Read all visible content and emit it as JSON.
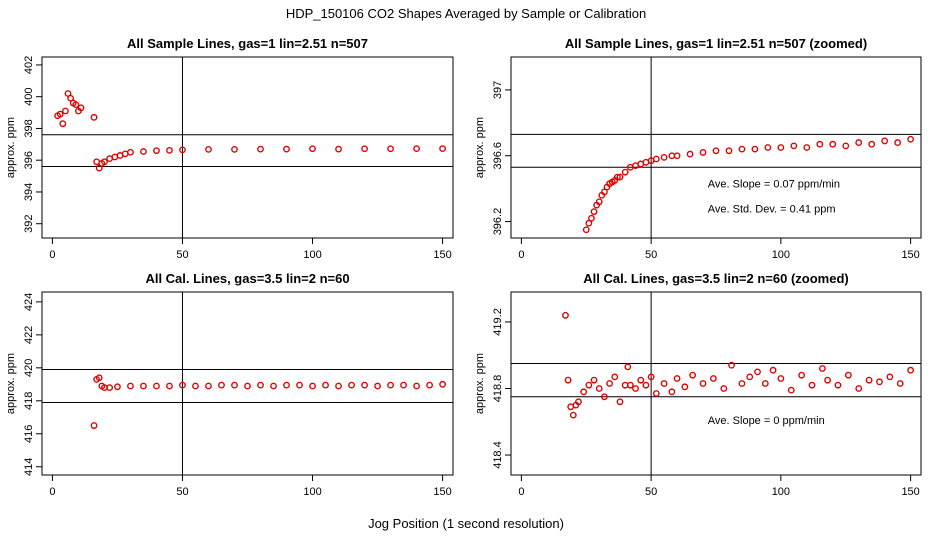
{
  "figure": {
    "title": "HDP_150106  CO2 Shapes Averaged by Sample or Calibration",
    "xlabel": "Jog Position (1 second resolution)",
    "colors": {
      "points": "#e00000",
      "axes": "#000000",
      "background": "#ffffff"
    }
  },
  "chart_data": [
    {
      "type": "scatter",
      "title": "All Sample Lines, gas=1 lin=2.51 n=507",
      "ylabel": "approx. ppm",
      "xlim": [
        -4,
        154
      ],
      "ylim": [
        391.1,
        402.5
      ],
      "xticks": [
        0,
        50,
        100,
        150
      ],
      "yticks": [
        392,
        394,
        396,
        398,
        400,
        402
      ],
      "vline_x": 50,
      "hlines_y": [
        395.6,
        397.6
      ],
      "annotations": [],
      "series": [
        {
          "x": [
            2,
            3,
            4,
            5,
            6,
            7,
            8,
            9,
            10,
            11,
            16,
            17,
            18,
            19,
            20,
            22,
            24,
            26,
            28,
            30,
            35,
            40,
            45,
            50,
            60,
            70,
            80,
            90,
            100,
            110,
            120,
            130,
            140,
            150
          ],
          "y": [
            398.8,
            398.9,
            398.3,
            399.1,
            400.2,
            399.9,
            399.6,
            399.5,
            399.1,
            399.3,
            398.7,
            395.9,
            395.5,
            395.8,
            395.9,
            396.1,
            396.2,
            396.3,
            396.4,
            396.5,
            396.55,
            396.6,
            396.62,
            396.65,
            396.68,
            396.68,
            396.7,
            396.7,
            396.72,
            396.7,
            396.72,
            396.72,
            396.73,
            396.73
          ]
        }
      ]
    },
    {
      "type": "scatter",
      "title": "All Sample Lines, gas=1 lin=2.51 n=507 (zoomed)",
      "ylabel": "approx. ppm",
      "xlim": [
        -4,
        154
      ],
      "ylim": [
        396.1,
        397.2
      ],
      "xticks": [
        0,
        50,
        100,
        150
      ],
      "yticks": [
        396.2,
        396.6,
        397.0
      ],
      "vline_x": 50,
      "hlines_y": [
        396.53,
        396.73
      ],
      "annotations": [
        "Ave. Slope =  0.07  ppm/min",
        "Ave. Std. Dev. =  0.41  ppm"
      ],
      "series": [
        {
          "x": [
            25,
            26,
            27,
            28,
            29,
            30,
            31,
            32,
            33,
            34,
            35,
            36,
            37,
            38,
            40,
            42,
            44,
            46,
            48,
            50,
            52,
            55,
            58,
            60,
            65,
            70,
            75,
            80,
            85,
            90,
            95,
            100,
            105,
            110,
            115,
            120,
            125,
            130,
            135,
            140,
            145,
            150
          ],
          "y": [
            396.15,
            396.19,
            396.22,
            396.26,
            396.3,
            396.32,
            396.36,
            396.38,
            396.41,
            396.43,
            396.44,
            396.45,
            396.47,
            396.47,
            396.5,
            396.53,
            396.54,
            396.55,
            396.56,
            396.57,
            396.58,
            396.59,
            396.6,
            396.6,
            396.61,
            396.62,
            396.63,
            396.63,
            396.64,
            396.64,
            396.65,
            396.65,
            396.66,
            396.65,
            396.67,
            396.67,
            396.66,
            396.68,
            396.67,
            396.69,
            396.68,
            396.7
          ]
        }
      ]
    },
    {
      "type": "scatter",
      "title": "All Cal. Lines, gas=3.5 lin=2 n=60",
      "ylabel": "approx. ppm",
      "xlim": [
        -4,
        154
      ],
      "ylim": [
        413.5,
        424.6
      ],
      "xticks": [
        0,
        50,
        100,
        150
      ],
      "yticks": [
        414,
        416,
        418,
        420,
        422,
        424
      ],
      "vline_x": 50,
      "hlines_y": [
        417.9,
        419.9
      ],
      "annotations": [],
      "series": [
        {
          "x": [
            16,
            17,
            18,
            19,
            20,
            22,
            25,
            30,
            35,
            40,
            45,
            50,
            55,
            60,
            65,
            70,
            75,
            80,
            85,
            90,
            95,
            100,
            105,
            110,
            115,
            120,
            125,
            130,
            135,
            140,
            145,
            150
          ],
          "y": [
            416.5,
            419.3,
            419.4,
            418.9,
            418.8,
            418.8,
            418.85,
            418.9,
            418.9,
            418.9,
            418.9,
            418.95,
            418.9,
            418.9,
            418.95,
            418.95,
            418.9,
            418.95,
            418.9,
            418.95,
            418.95,
            418.9,
            418.95,
            418.9,
            418.95,
            418.95,
            418.9,
            418.95,
            418.95,
            418.9,
            418.95,
            419.0
          ]
        }
      ]
    },
    {
      "type": "scatter",
      "title": "All Cal. Lines, gas=3.5 lin=2 n=60 (zoomed)",
      "ylabel": "approx. ppm",
      "xlim": [
        -4,
        154
      ],
      "ylim": [
        418.28,
        419.38
      ],
      "xticks": [
        0,
        50,
        100,
        150
      ],
      "yticks": [
        418.4,
        418.8,
        419.2
      ],
      "vline_x": 50,
      "hlines_y": [
        418.75,
        418.95
      ],
      "annotations": [
        "Ave. Slope =  0  ppm/min"
      ],
      "series": [
        {
          "x": [
            17,
            18,
            19,
            20,
            21,
            22,
            24,
            26,
            28,
            30,
            32,
            34,
            36,
            38,
            40,
            41,
            42,
            44,
            46,
            48,
            50,
            52,
            55,
            58,
            60,
            63,
            66,
            70,
            74,
            78,
            81,
            85,
            88,
            91,
            94,
            97,
            100,
            104,
            108,
            112,
            116,
            118,
            122,
            126,
            130,
            134,
            138,
            142,
            146,
            150
          ],
          "y": [
            419.24,
            418.85,
            418.69,
            418.64,
            418.7,
            418.72,
            418.78,
            418.82,
            418.85,
            418.8,
            418.75,
            418.83,
            418.87,
            418.72,
            418.82,
            418.93,
            418.82,
            418.8,
            418.85,
            418.82,
            418.87,
            418.77,
            418.83,
            418.78,
            418.86,
            418.81,
            418.88,
            418.83,
            418.86,
            418.8,
            418.94,
            418.83,
            418.87,
            418.9,
            418.83,
            418.91,
            418.86,
            418.79,
            418.88,
            418.82,
            418.92,
            418.85,
            418.82,
            418.88,
            418.8,
            418.85,
            418.84,
            418.87,
            418.83,
            418.91
          ]
        }
      ]
    }
  ]
}
